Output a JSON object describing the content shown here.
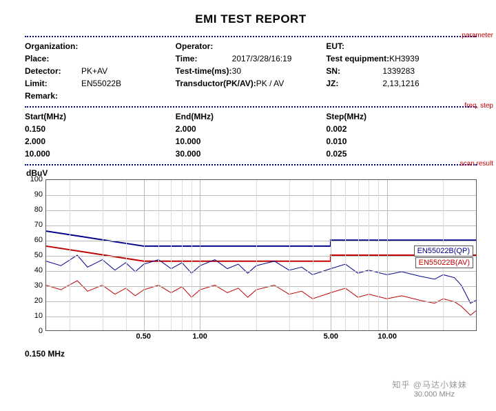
{
  "title": "EMI TEST REPORT",
  "section_labels": {
    "parameter": "parameter",
    "freq_step": "freq, step",
    "scan_result": "scan result"
  },
  "colors": {
    "navy": "#00008b",
    "red": "#c00000",
    "grid": "#bbbbbb",
    "border": "#555555",
    "bg": "#ffffff"
  },
  "parameters": {
    "rows": [
      [
        {
          "key": "Organization:",
          "val": ""
        },
        {
          "key": "Operator:",
          "val": ""
        },
        {
          "key": "EUT:",
          "val": ""
        }
      ],
      [
        {
          "key": "Place:",
          "val": ""
        },
        {
          "key": "Time:",
          "val": "2017/3/28/16:19"
        },
        {
          "key": "Test equipment:",
          "val": "KH3939"
        }
      ],
      [
        {
          "key": "Detector:",
          "val": "PK+AV"
        },
        {
          "key": "Test-time(ms):",
          "val": "30"
        },
        {
          "key": "SN:",
          "val": "1339283"
        }
      ],
      [
        {
          "key": "Limit:",
          "val": "EN55022B"
        },
        {
          "key": "Transductor(PK/AV):",
          "val": "PK  /  AV"
        },
        {
          "key": "JZ:",
          "val": "2,13,1216"
        }
      ],
      [
        {
          "key": "Remark:",
          "val": ""
        },
        {
          "key": "",
          "val": ""
        },
        {
          "key": "",
          "val": ""
        }
      ]
    ]
  },
  "freq_step": {
    "headers": [
      "Start(MHz)",
      "End(MHz)",
      "Step(MHz)"
    ],
    "rows": [
      [
        "0.150",
        "2.000",
        "0.002"
      ],
      [
        "2.000",
        "10.000",
        "0.010"
      ],
      [
        "10.000",
        "30.000",
        "0.025"
      ]
    ]
  },
  "chart": {
    "type": "line",
    "ylabel": "dBuV",
    "ylim": [
      0,
      100
    ],
    "ytick_step": 10,
    "yticks": [
      0,
      10,
      20,
      30,
      40,
      50,
      60,
      70,
      80,
      90,
      100
    ],
    "xscale": "log",
    "xlim": [
      0.15,
      30
    ],
    "xticks": [
      {
        "v": 0.5,
        "label": "0.50"
      },
      {
        "v": 1.0,
        "label": "1.00"
      },
      {
        "v": 5.0,
        "label": "5.00"
      },
      {
        "v": 10.0,
        "label": "10.00"
      }
    ],
    "x_minor_ticks": [
      0.2,
      0.3,
      0.4,
      0.6,
      0.7,
      0.8,
      0.9,
      2,
      3,
      4,
      6,
      7,
      8,
      9,
      20
    ],
    "grid": true,
    "legends": [
      {
        "text": "EN55022B(QP)",
        "color": "#00008b",
        "y": 95
      },
      {
        "text": "EN55022B(AV)",
        "color": "#c00000",
        "y": 112
      }
    ],
    "limit_lines": [
      {
        "name": "QP",
        "color": "#00008b",
        "width": 2,
        "points": [
          [
            0.15,
            66
          ],
          [
            0.5,
            56
          ],
          [
            5,
            56
          ],
          [
            5,
            60
          ],
          [
            30,
            60
          ]
        ]
      },
      {
        "name": "AV",
        "color": "#c00000",
        "width": 2,
        "points": [
          [
            0.15,
            56
          ],
          [
            0.5,
            46
          ],
          [
            5,
            46
          ],
          [
            5,
            50
          ],
          [
            30,
            50
          ]
        ]
      }
    ],
    "scan_traces": [
      {
        "name": "PK",
        "color": "#00008b",
        "width": 1,
        "points": [
          [
            0.15,
            46
          ],
          [
            0.18,
            43
          ],
          [
            0.22,
            50
          ],
          [
            0.25,
            42
          ],
          [
            0.3,
            47
          ],
          [
            0.35,
            40
          ],
          [
            0.4,
            45
          ],
          [
            0.45,
            39
          ],
          [
            0.5,
            44
          ],
          [
            0.6,
            47
          ],
          [
            0.7,
            41
          ],
          [
            0.8,
            45
          ],
          [
            0.9,
            38
          ],
          [
            1.0,
            43
          ],
          [
            1.2,
            47
          ],
          [
            1.4,
            41
          ],
          [
            1.6,
            44
          ],
          [
            1.8,
            38
          ],
          [
            2.0,
            43
          ],
          [
            2.5,
            46
          ],
          [
            3,
            40
          ],
          [
            3.5,
            42
          ],
          [
            4,
            37
          ],
          [
            5,
            41
          ],
          [
            6,
            44
          ],
          [
            7,
            38
          ],
          [
            8,
            40
          ],
          [
            10,
            37
          ],
          [
            12,
            39
          ],
          [
            15,
            36
          ],
          [
            18,
            34
          ],
          [
            20,
            37
          ],
          [
            23,
            35
          ],
          [
            25,
            30
          ],
          [
            27,
            22
          ],
          [
            28,
            18
          ],
          [
            30,
            20
          ]
        ]
      },
      {
        "name": "AV",
        "color": "#c00000",
        "width": 1,
        "points": [
          [
            0.15,
            30
          ],
          [
            0.18,
            27
          ],
          [
            0.22,
            33
          ],
          [
            0.25,
            26
          ],
          [
            0.3,
            30
          ],
          [
            0.35,
            24
          ],
          [
            0.4,
            28
          ],
          [
            0.45,
            23
          ],
          [
            0.5,
            27
          ],
          [
            0.6,
            30
          ],
          [
            0.7,
            25
          ],
          [
            0.8,
            29
          ],
          [
            0.9,
            22
          ],
          [
            1.0,
            27
          ],
          [
            1.2,
            30
          ],
          [
            1.4,
            25
          ],
          [
            1.6,
            28
          ],
          [
            1.8,
            22
          ],
          [
            2.0,
            27
          ],
          [
            2.5,
            30
          ],
          [
            3,
            24
          ],
          [
            3.5,
            26
          ],
          [
            4,
            21
          ],
          [
            5,
            25
          ],
          [
            6,
            28
          ],
          [
            7,
            22
          ],
          [
            8,
            24
          ],
          [
            10,
            21
          ],
          [
            12,
            23
          ],
          [
            15,
            20
          ],
          [
            18,
            18
          ],
          [
            20,
            21
          ],
          [
            23,
            19
          ],
          [
            25,
            16
          ],
          [
            27,
            12
          ],
          [
            28,
            10
          ],
          [
            30,
            13
          ]
        ]
      }
    ],
    "footer_left": "0.150 MHz",
    "footer_right": "30.000 MHz",
    "background_color": "#ffffff",
    "grid_color": "#bbbbbb"
  },
  "watermark": "知乎 @马达小妹妹"
}
